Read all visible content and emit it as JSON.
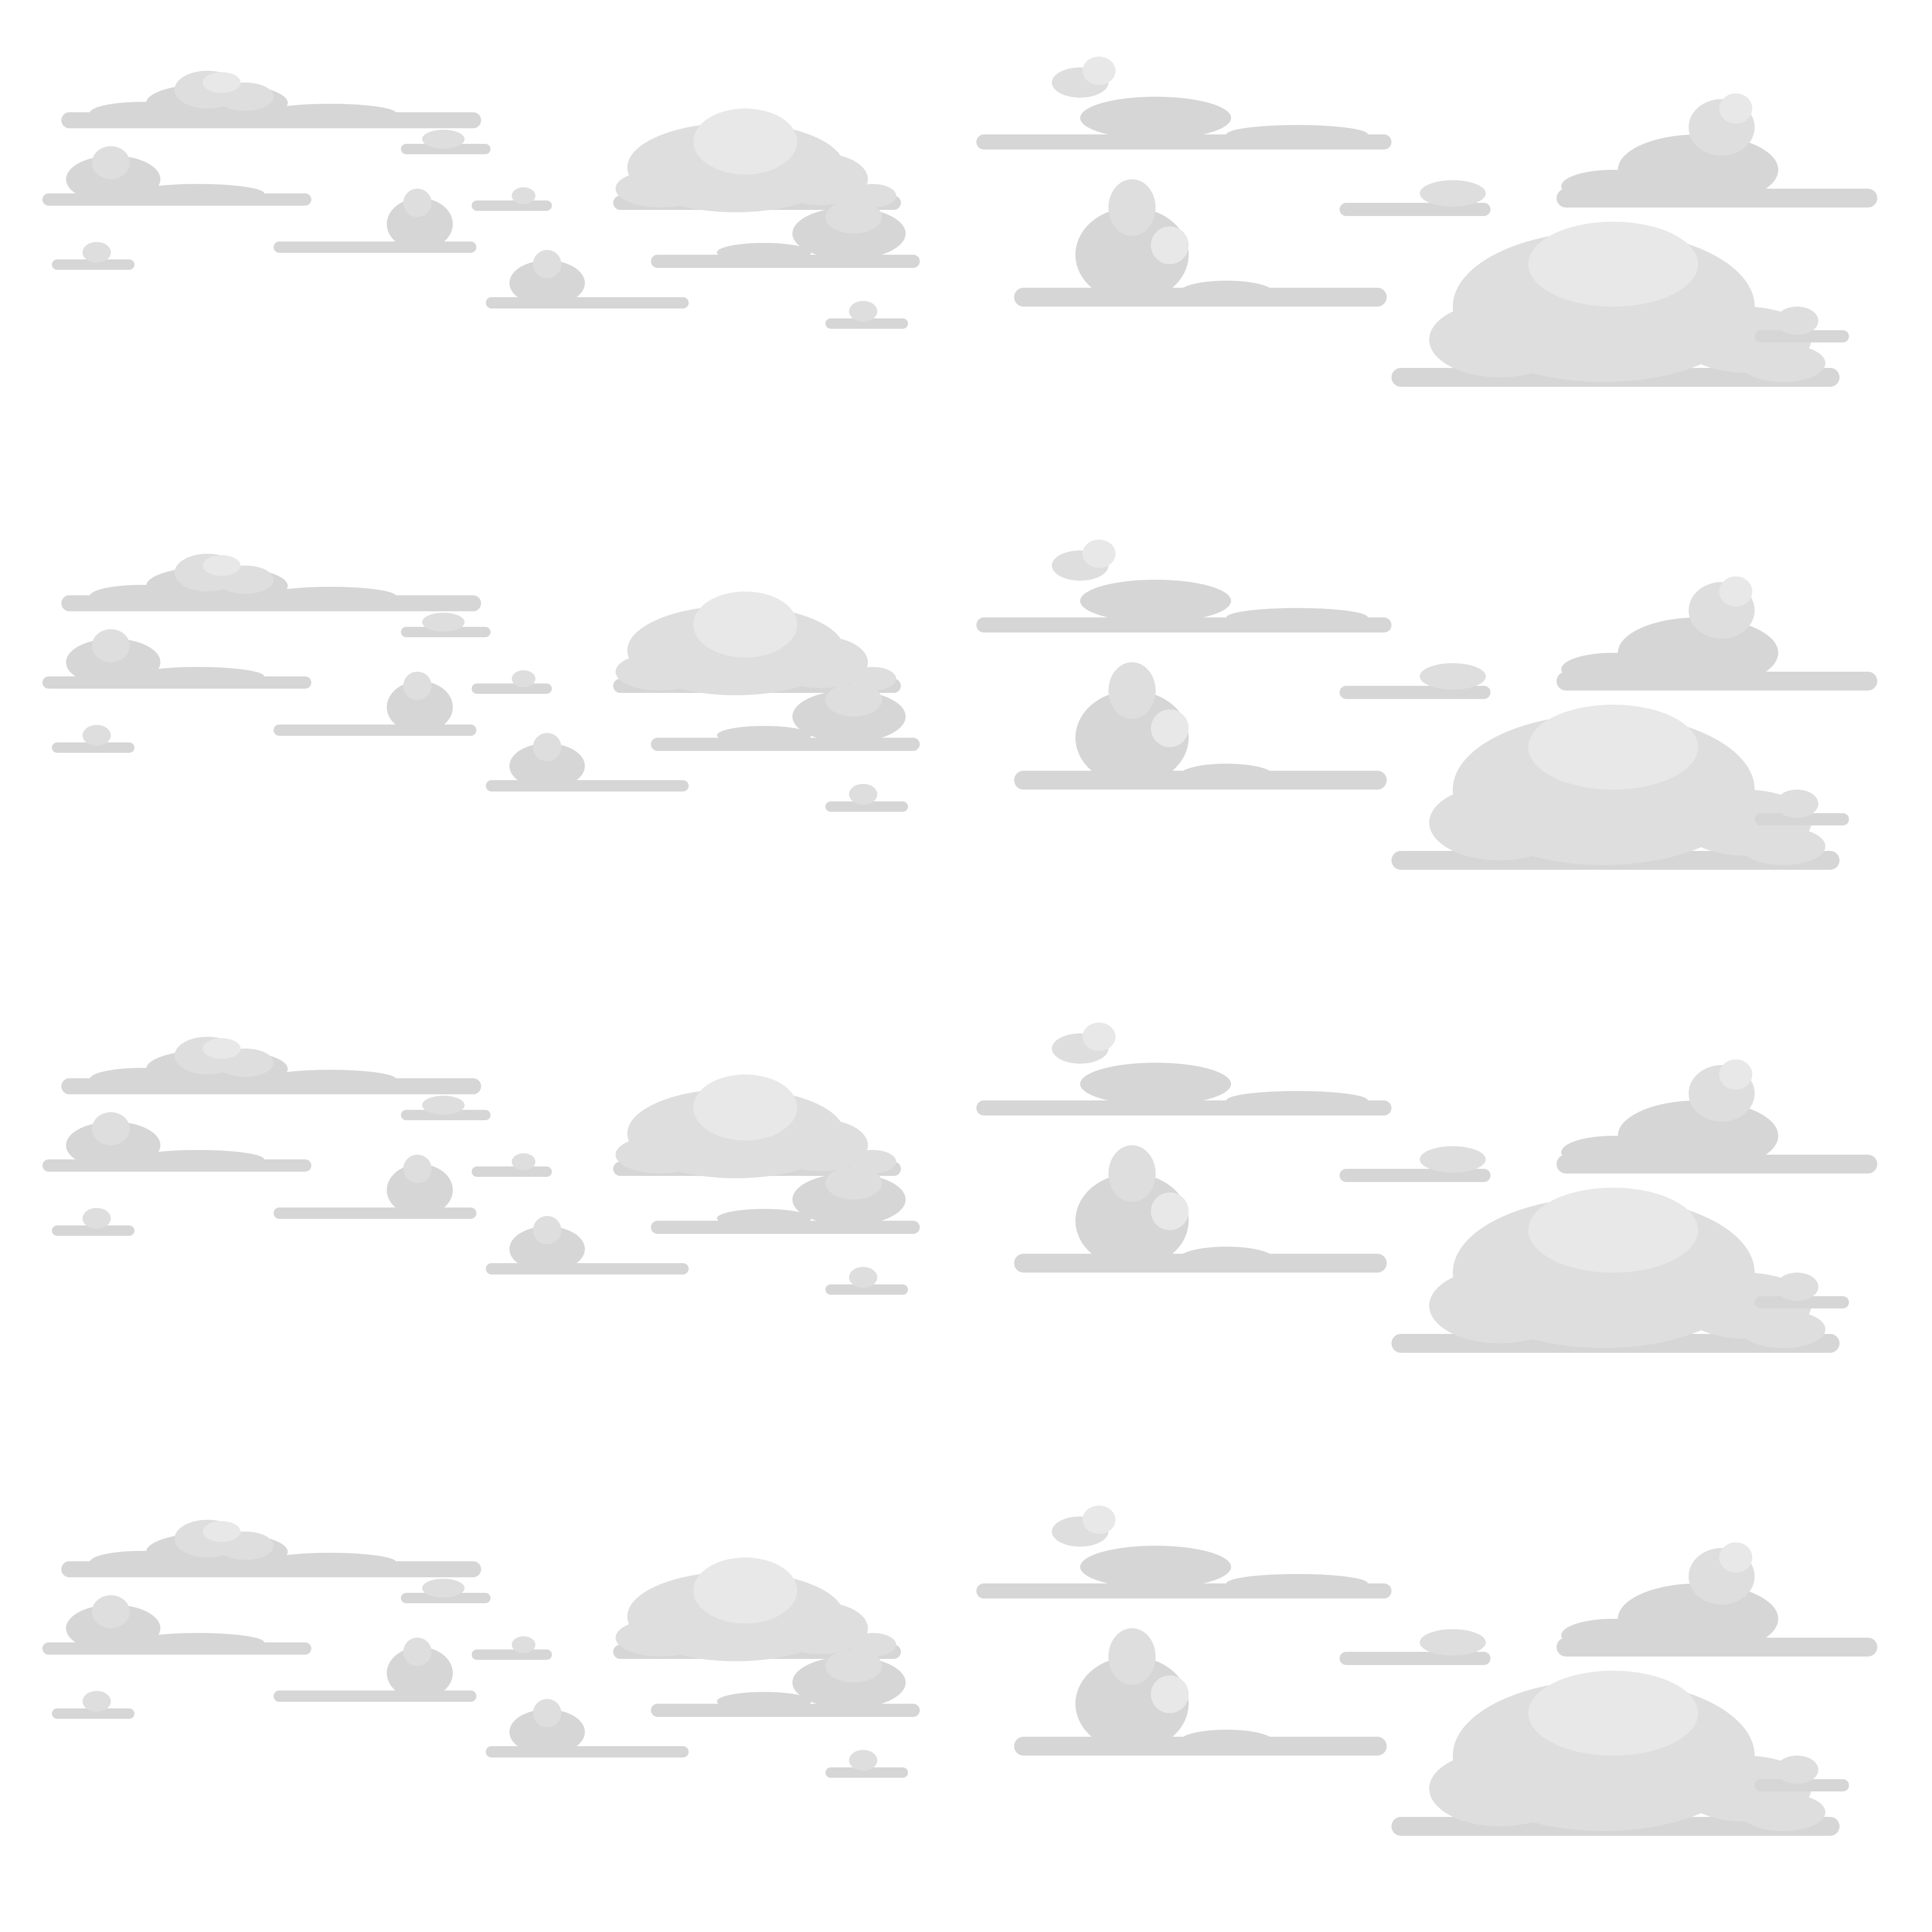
{
  "sprite_sheet": {
    "background": "#ffffff",
    "cloud_colors": {
      "base": "#d6d6d6",
      "mid": "#dedede",
      "highlight": "#e8e8e8"
    },
    "rows": 4,
    "columns": 2,
    "clouds_per_tile": 17
  }
}
